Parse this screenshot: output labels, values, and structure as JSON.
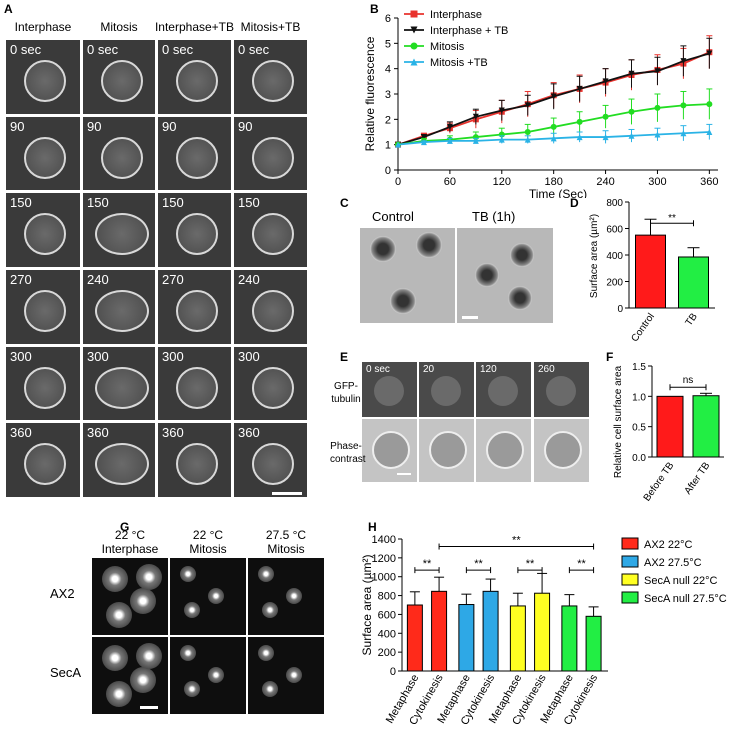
{
  "panel_labels": {
    "A": "A",
    "B": "B",
    "C": "C",
    "D": "D",
    "E": "E",
    "F": "F",
    "G": "G",
    "H": "H"
  },
  "panelA": {
    "columns": [
      "Interphase",
      "Mitosis",
      "Interphase+TB",
      "Mitosis+TB"
    ],
    "rows": [
      [
        "0 sec",
        "0 sec",
        "0 sec",
        "0 sec"
      ],
      [
        "90",
        "90",
        "90",
        "90"
      ],
      [
        "150",
        "150",
        "150",
        "150"
      ],
      [
        "270",
        "240",
        "270",
        "240"
      ],
      [
        "300",
        "300",
        "300",
        "300"
      ],
      [
        "360",
        "360",
        "360",
        "360"
      ]
    ]
  },
  "panelC": {
    "labels": [
      "Control",
      "TB (1h)"
    ]
  },
  "panelE": {
    "times": [
      "0 sec",
      "20",
      "120",
      "260"
    ],
    "row_labels": [
      "GFP-\ntubulin",
      "Phase-\ncontrast"
    ]
  },
  "panelG": {
    "columns": [
      "22 °C\nInterphase",
      "22 °C\nMitosis",
      "27.5 °C\nMitosis"
    ],
    "rows": [
      "AX2",
      "SecA"
    ]
  },
  "chart_data": [
    {
      "panel": "B",
      "type": "line",
      "xlabel": "Time (Sec)",
      "ylabel": "Relative  fluorescence",
      "x": [
        0,
        30,
        60,
        90,
        120,
        150,
        180,
        210,
        240,
        270,
        300,
        330,
        360
      ],
      "xticks": [
        0,
        60,
        120,
        180,
        240,
        300,
        360
      ],
      "yticks": [
        0,
        1,
        2,
        3,
        4,
        5,
        6
      ],
      "xlim": [
        0,
        370
      ],
      "ylim": [
        0,
        6
      ],
      "legend": "top-left",
      "series": [
        {
          "name": "Interphase",
          "color": "#e8322d",
          "marker": "square",
          "values": [
            1,
            1.35,
            1.65,
            2.0,
            2.3,
            2.6,
            2.95,
            3.2,
            3.45,
            3.75,
            3.95,
            4.2,
            4.65
          ],
          "err": [
            0,
            0.1,
            0.2,
            0.35,
            0.45,
            0.5,
            0.5,
            0.55,
            0.55,
            0.6,
            0.6,
            0.6,
            0.65
          ]
        },
        {
          "name": "Interphase + TB",
          "color": "#111111",
          "marker": "triangle-down",
          "values": [
            1,
            1.3,
            1.7,
            2.1,
            2.35,
            2.55,
            2.9,
            3.2,
            3.5,
            3.8,
            3.9,
            4.3,
            4.6
          ],
          "err": [
            0,
            0.1,
            0.2,
            0.3,
            0.4,
            0.4,
            0.5,
            0.5,
            0.5,
            0.55,
            0.55,
            0.6,
            0.6
          ]
        },
        {
          "name": "Mitosis",
          "color": "#22dd22",
          "marker": "circle",
          "values": [
            1,
            1.15,
            1.2,
            1.3,
            1.4,
            1.5,
            1.7,
            1.9,
            2.1,
            2.3,
            2.45,
            2.55,
            2.6
          ],
          "err": [
            0,
            0.1,
            0.15,
            0.2,
            0.25,
            0.3,
            0.35,
            0.4,
            0.45,
            0.5,
            0.55,
            0.55,
            0.6
          ]
        },
        {
          "name": "Mitosis +TB",
          "color": "#2ab3e6",
          "marker": "triangle-up",
          "values": [
            1,
            1.1,
            1.15,
            1.15,
            1.2,
            1.2,
            1.25,
            1.3,
            1.3,
            1.35,
            1.4,
            1.45,
            1.5
          ],
          "err": [
            0,
            0.05,
            0.1,
            0.1,
            0.15,
            0.15,
            0.2,
            0.2,
            0.25,
            0.25,
            0.25,
            0.3,
            0.3
          ]
        }
      ]
    },
    {
      "panel": "D",
      "type": "bar",
      "ylabel": "Surface area (µm²)",
      "categories": [
        "Control",
        "TB"
      ],
      "values": [
        550,
        385
      ],
      "err": [
        120,
        70
      ],
      "colors": [
        "#ff1a1a",
        "#22ee44"
      ],
      "yticks": [
        0,
        200,
        400,
        600,
        800
      ],
      "ylim": [
        0,
        800
      ],
      "significance": "**"
    },
    {
      "panel": "F",
      "type": "bar",
      "ylabel": "Relative cell surface area",
      "categories": [
        "Before TB",
        "After TB"
      ],
      "values": [
        1.0,
        1.01
      ],
      "err": [
        0,
        0.04
      ],
      "colors": [
        "#ff1a1a",
        "#22ee44"
      ],
      "yticks": [
        "0.0",
        "0.5",
        "1.0",
        "1.5"
      ],
      "ylim": [
        0,
        1.5
      ],
      "significance": "ns"
    },
    {
      "panel": "H",
      "type": "bar",
      "ylabel": "Surface area (µm²)",
      "yticks": [
        0,
        200,
        400,
        600,
        800,
        1000,
        1200,
        1400
      ],
      "ylim": [
        0,
        1400
      ],
      "legend": "right",
      "groups": [
        {
          "name": "AX2 22°C",
          "color": "#ff2a1a",
          "categories": [
            "Metaphase",
            "Cytokinesis"
          ],
          "values": [
            700,
            845
          ],
          "err": [
            140,
            150
          ],
          "sig": "**"
        },
        {
          "name": "AX2 27.5°C",
          "color": "#2ea8e6",
          "categories": [
            "Metaphase",
            "Cytokinesis"
          ],
          "values": [
            705,
            845
          ],
          "err": [
            110,
            130
          ],
          "sig": "**"
        },
        {
          "name": "SecA null 22°C",
          "color": "#ffff22",
          "categories": [
            "Metaphase",
            "Cytokinesis"
          ],
          "values": [
            690,
            825
          ],
          "err": [
            135,
            210
          ],
          "sig": "**"
        },
        {
          "name": "SecA null 27.5°C",
          "color": "#22ee44",
          "categories": [
            "Metaphase",
            "Cytokinesis"
          ],
          "values": [
            690,
            580
          ],
          "err": [
            120,
            100
          ],
          "sig": "**"
        }
      ],
      "top_significance": "**"
    }
  ]
}
